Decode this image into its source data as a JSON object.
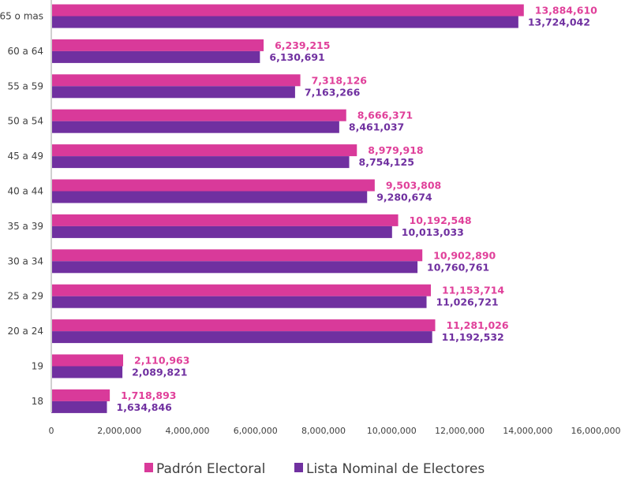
{
  "chart_data": {
    "type": "bar",
    "orientation": "horizontal",
    "categories": [
      "65 o mas",
      "60 a 64",
      "55 a 59",
      "50 a 54",
      "45 a 49",
      "40 a 44",
      "35 a 39",
      "30 a 34",
      "25 a 29",
      "20 a 24",
      "19",
      "18"
    ],
    "series": [
      {
        "name": "Padrón Electoral",
        "color": "#D93A9A",
        "values": [
          13884610,
          6239215,
          7318126,
          8666371,
          8979918,
          9503808,
          10192548,
          10902890,
          11153714,
          11281026,
          2110963,
          1718893
        ],
        "labels": [
          "13,884,610",
          "6,239,215",
          "7,318,126",
          "8,666,371",
          "8,979,918",
          "9,503,808",
          "10,192,548",
          "10,902,890",
          "11,153,714",
          "11,281,026",
          "2,110,963",
          "1,718,893"
        ]
      },
      {
        "name": "Lista Nominal de Electores",
        "color": "#7030A0",
        "values": [
          13724042,
          6130691,
          7163266,
          8461037,
          8754125,
          9280674,
          10013033,
          10760761,
          11026721,
          11192532,
          2089821,
          1634846
        ],
        "labels": [
          "13,724,042",
          "6,130,691",
          "7,163,266",
          "8,461,037",
          "8,754,125",
          "9,280,674",
          "10,013,033",
          "10,760,761",
          "11,026,721",
          "11,192,532",
          "2,089,821",
          "1,634,846"
        ]
      }
    ],
    "xlim": [
      0,
      16000000
    ],
    "x_ticks": [
      "0",
      "2,000,000",
      "4,000,000",
      "6,000,000",
      "8,000,000",
      "10,000,000",
      "12,000,000",
      "14,000,000",
      "16,000,000"
    ],
    "grid": false,
    "legend": "bottom",
    "label_colors": {
      "Padrón Electoral": "#E0409A",
      "Lista Nominal de Electores": "#7030A0"
    }
  }
}
